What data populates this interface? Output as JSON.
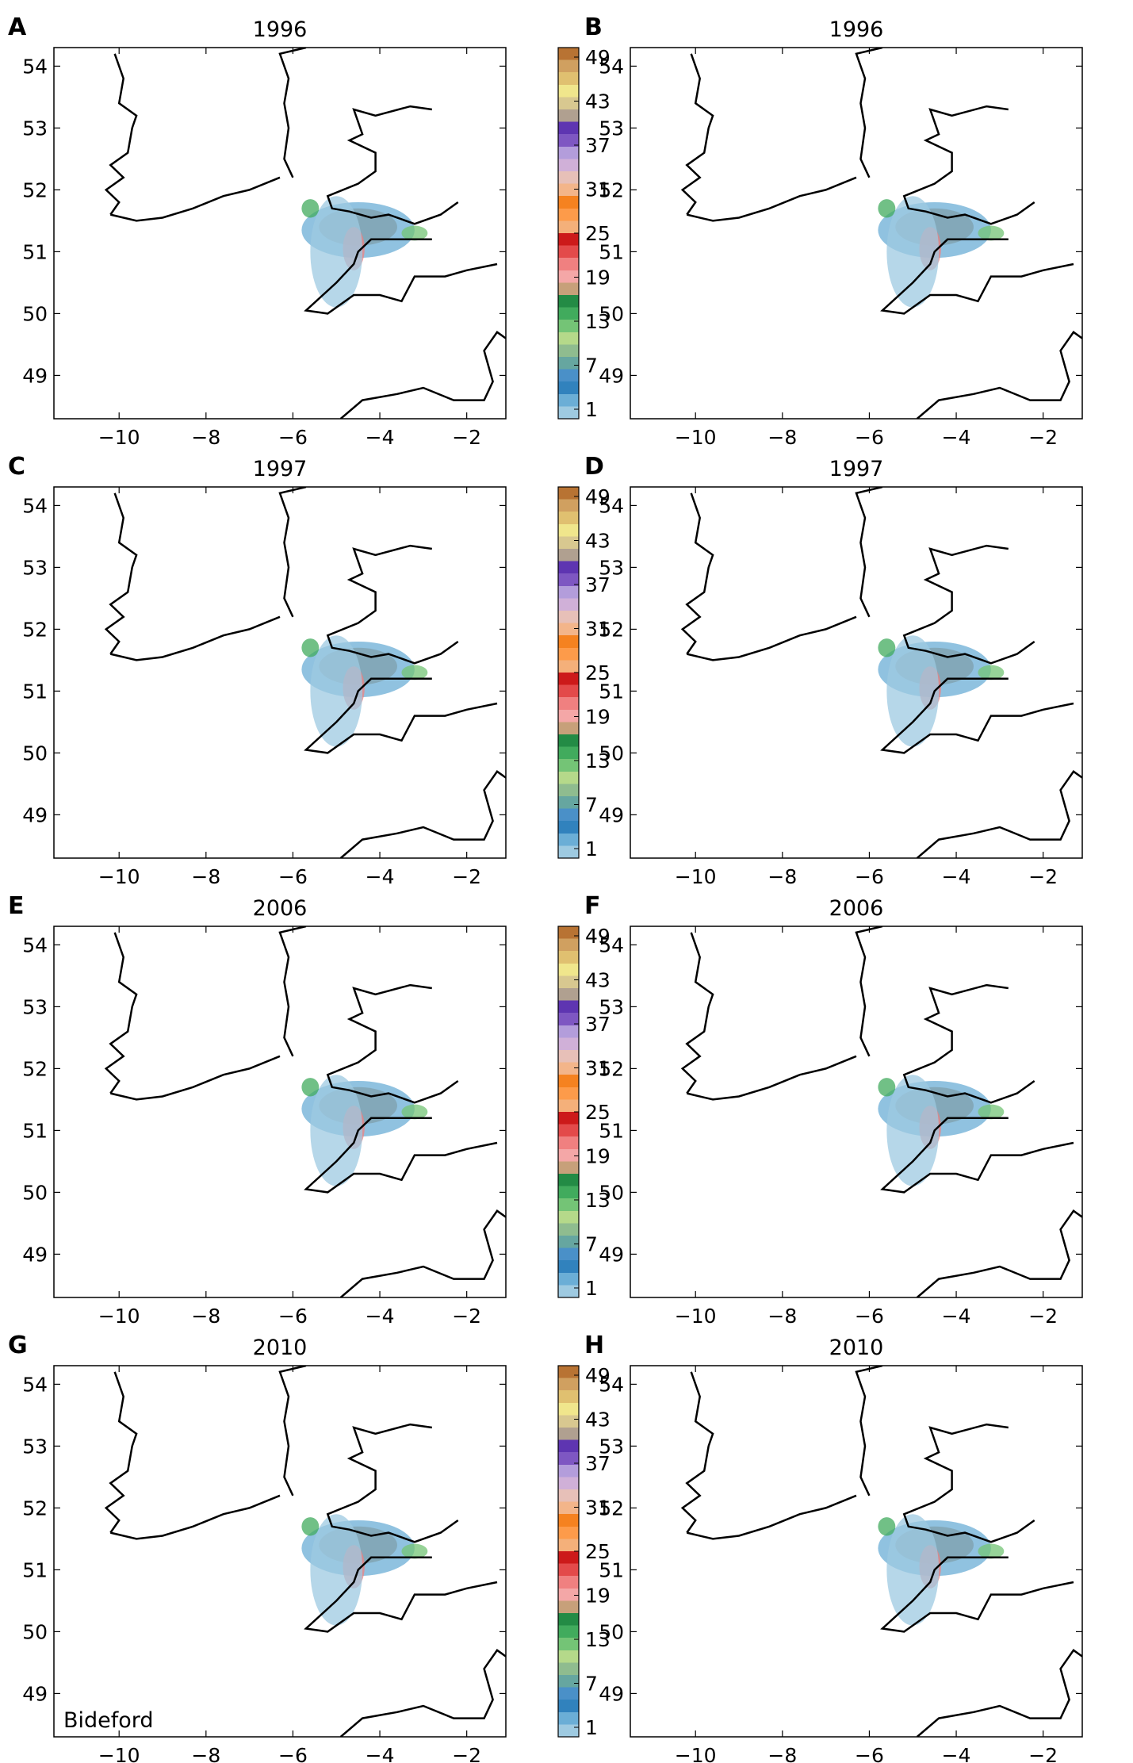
{
  "chart_data": [
    {
      "letter": "A",
      "title": "1996"
    },
    {
      "letter": "B",
      "title": "1996"
    },
    {
      "letter": "C",
      "title": "1997"
    },
    {
      "letter": "D",
      "title": "1997"
    },
    {
      "letter": "E",
      "title": "2006"
    },
    {
      "letter": "F",
      "title": "2006"
    },
    {
      "letter": "G",
      "title": "2010",
      "annotation": "Bideford"
    },
    {
      "letter": "H",
      "title": "2010"
    }
  ],
  "axes": {
    "xlim": [
      -11.5,
      -1.1
    ],
    "ylim": [
      48.3,
      54.3
    ],
    "xticks": [
      -10,
      -8,
      -6,
      -4,
      -2
    ],
    "xtick_labels": [
      "−10",
      "−8",
      "−6",
      "−4",
      "−2"
    ],
    "yticks": [
      54,
      53,
      52,
      51,
      50,
      49
    ],
    "ytick_labels": [
      "54",
      "53",
      "52",
      "51",
      "50",
      "49"
    ]
  },
  "colorbar": {
    "ticks": [
      49,
      43,
      37,
      31,
      25,
      19,
      13,
      7,
      1
    ],
    "tick_labels": [
      "49",
      "43",
      "37",
      "31",
      "25",
      "19",
      "13",
      "7",
      "1"
    ],
    "colors": [
      "#9ecae1",
      "#6baed6",
      "#3182bd",
      "#4a90c8",
      "#66a6a0",
      "#8fbc8f",
      "#b5d98a",
      "#74c476",
      "#41ab5d",
      "#238b45",
      "#c7a07a",
      "#f4a7a7",
      "#f08080",
      "#e34a4a",
      "#cc1a1a",
      "#f4b07a",
      "#fd9b4a",
      "#f58220",
      "#f3b58a",
      "#e7c0b8",
      "#d0b0d8",
      "#b39ddb",
      "#7e57c2",
      "#5e35b1",
      "#b0a090",
      "#d8c890",
      "#f0e68c",
      "#e0c070",
      "#d0a060",
      "#b87333"
    ]
  }
}
